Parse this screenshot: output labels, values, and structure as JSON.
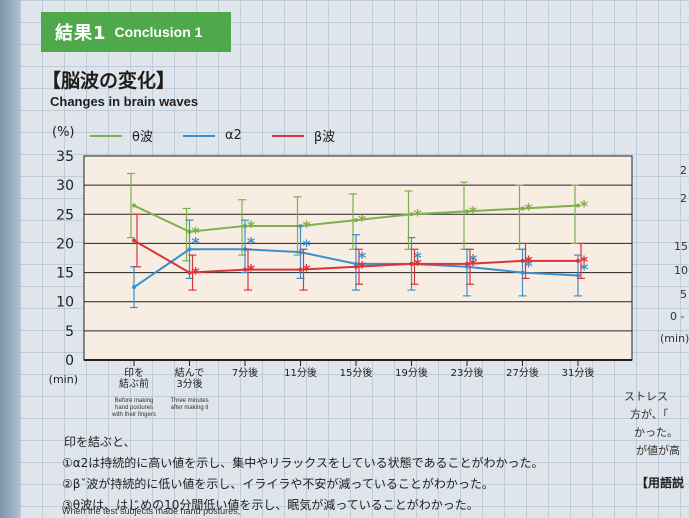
{
  "badge": {
    "jp": "結果1",
    "en": "Conclusion 1"
  },
  "section": {
    "title": "【脳波の変化】",
    "subtitle": "Changes in brain waves"
  },
  "unit_label": "(%)",
  "colors": {
    "theta": "#7fb04c",
    "alpha2": "#3a8fd0",
    "beta": "#d8343c",
    "badge": "#4fa84a",
    "plot_bg": "#f7ede2"
  },
  "chart_data": {
    "type": "line",
    "ylabel": "(%)",
    "xunit": "(min)",
    "ylim": [
      0,
      35
    ],
    "yticks": [
      0,
      5,
      10,
      15,
      20,
      25,
      30,
      35
    ],
    "grid": "horizontal",
    "legend_position": "top",
    "categories": [
      {
        "label": "印を\n結ぶ前",
        "note": "Before making\nhand postures\nwith their fingers"
      },
      {
        "label": "結んで\n3分後",
        "note": "Three minutes\nafter making it"
      },
      {
        "label": "7分後",
        "note": ""
      },
      {
        "label": "11分後",
        "note": ""
      },
      {
        "label": "15分後",
        "note": ""
      },
      {
        "label": "19分後",
        "note": ""
      },
      {
        "label": "23分後",
        "note": ""
      },
      {
        "label": "27分後",
        "note": ""
      },
      {
        "label": "31分後",
        "note": ""
      }
    ],
    "series": [
      {
        "name": "θ波",
        "color": "#7fb04c",
        "values": [
          26.5,
          22,
          23,
          23,
          24,
          25,
          25.5,
          26,
          26.5
        ],
        "err_low": [
          21,
          17,
          18,
          18,
          19,
          19,
          19,
          19,
          20
        ],
        "err_high": [
          32,
          26,
          27.5,
          28,
          28.5,
          29,
          30.5,
          30,
          30
        ]
      },
      {
        "name": "α2",
        "color": "#3a8fd0",
        "values": [
          12.5,
          19,
          19,
          18.5,
          16.5,
          16.5,
          16,
          15,
          14.5
        ],
        "err_low": [
          9,
          14,
          15,
          14,
          12,
          12,
          11,
          11,
          11
        ],
        "err_high": [
          16,
          24,
          24,
          23,
          21.5,
          21,
          19,
          19,
          18
        ]
      },
      {
        "name": "β波",
        "color": "#d8343c",
        "values": [
          20.5,
          15,
          15.5,
          15.5,
          16,
          16.5,
          16.5,
          17,
          17
        ],
        "err_low": [
          16,
          12,
          12,
          12,
          13,
          13,
          13,
          14,
          14
        ],
        "err_high": [
          25,
          18,
          19,
          19,
          19,
          19,
          19,
          20,
          20
        ]
      }
    ]
  },
  "notes": {
    "intro": "印を結ぶと、",
    "lines": [
      "①α2は持続的に高い値を示し、集中やリラックスをしている状態であることがわかった。",
      "②βˇ波が持続的に低い値を示し、イライラや不安が減っていることがわかった。",
      "③θ波は、はじめの10分間低い値を示し、眠気が減っていることがわかった。"
    ],
    "english": "When the test subjects made hand postures,"
  },
  "right_panel": {
    "ticks": [
      "2",
      "2",
      "15",
      "10",
      "5",
      "0 -",
      "(min)"
    ],
    "text": [
      "ストレス",
      "方が、「",
      "かった。",
      "が値が高"
    ],
    "glossary": "【用語説"
  }
}
